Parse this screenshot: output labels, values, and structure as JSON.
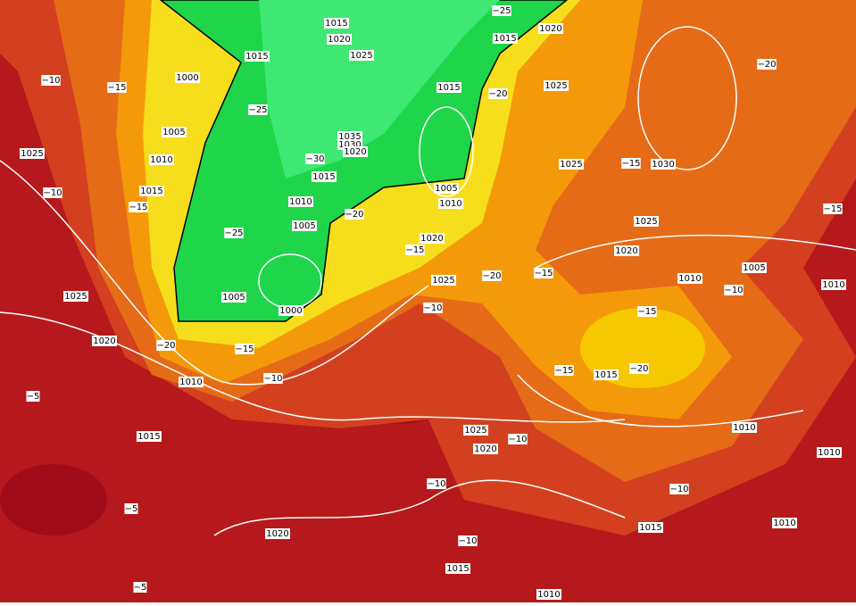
{
  "isobar_labels": [
    "1015",
    "1020",
    "1015",
    "1020",
    "1015",
    "1025",
    "1000",
    "1015",
    "1025",
    "1005",
    "1035",
    "1030",
    "1020",
    "1010",
    "1025",
    "1030",
    "1015",
    "1015",
    "1010",
    "1005",
    "1010",
    "1005",
    "1025",
    "1020",
    "1020",
    "1005",
    "1010",
    "1025",
    "1010",
    "1005",
    "1000",
    "1025",
    "1020",
    "1010",
    "1015",
    "1025",
    "1010",
    "1015",
    "1020",
    "1010",
    "1020",
    "1010",
    "1015",
    "1015",
    "1010",
    "1025"
  ],
  "temperature_labels": [
    "−10",
    "−15",
    "−25",
    "−20",
    "−15",
    "−20",
    "−25",
    "−30",
    "−10",
    "−15",
    "−25",
    "−20",
    "−15",
    "−20",
    "−15",
    "−10",
    "−15",
    "−15",
    "−10",
    "−20",
    "−15",
    "−10",
    "−15",
    "−20",
    "−5",
    "−10",
    "−10",
    "−10",
    "−5",
    "−10",
    "−5"
  ]
}
